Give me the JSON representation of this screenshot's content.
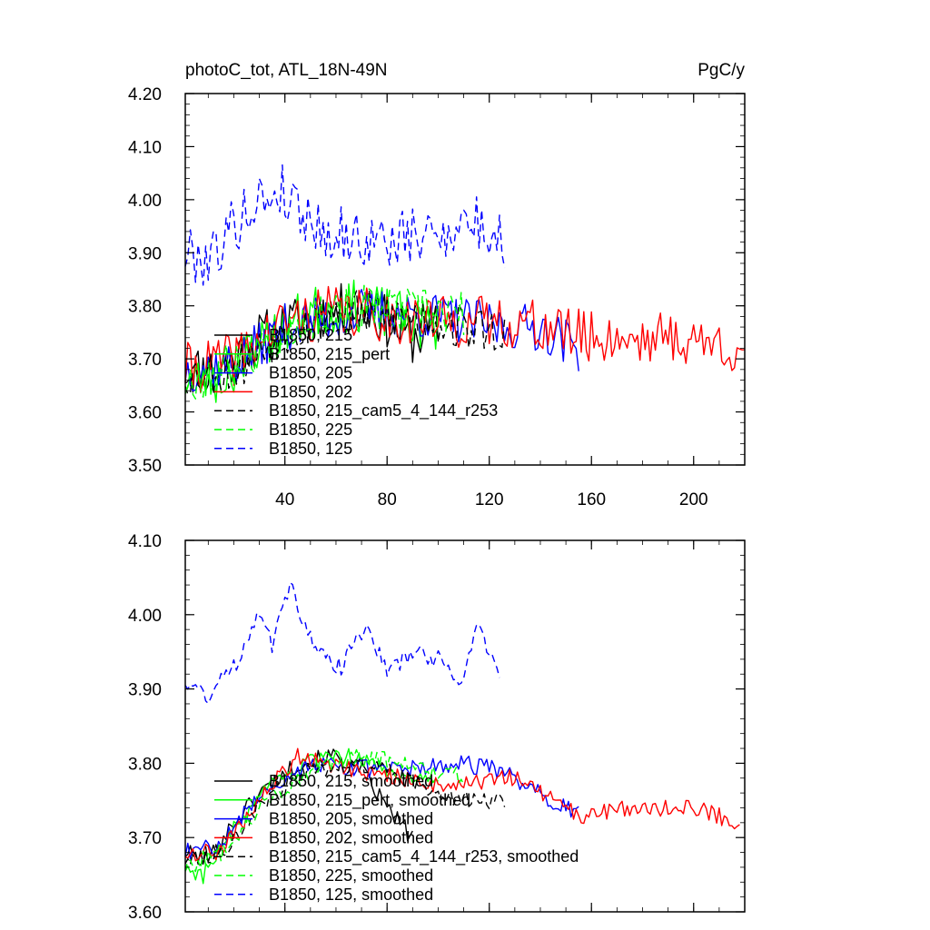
{
  "chart_data": [
    {
      "type": "line",
      "title": "photoC_tot, ATL_18N-49N",
      "units": "PgC/y",
      "xlim": [
        1,
        220
      ],
      "ylim": [
        3.5,
        4.2
      ],
      "xticks": [
        40,
        80,
        120,
        160,
        200
      ],
      "xtick_labels": [
        "40",
        "80",
        "120",
        "160",
        "200"
      ],
      "yticks": [
        3.5,
        3.6,
        3.7,
        3.8,
        3.9,
        4.0,
        4.1,
        4.2
      ],
      "ytick_labels": [
        "3.50",
        "3.60",
        "3.70",
        "3.80",
        "3.90",
        "4.00",
        "4.10",
        "4.20"
      ],
      "legend_position": "lower-left",
      "series": [
        {
          "name": "B1850, 215",
          "color": "#000000",
          "dash": "solid",
          "x_start": 1,
          "x_end": 100,
          "base": 3.76,
          "noise": 0.05,
          "seed": 11,
          "anchors": [
            [
              1,
              3.68
            ],
            [
              15,
              3.68
            ],
            [
              30,
              3.74
            ],
            [
              50,
              3.78
            ],
            [
              70,
              3.8
            ],
            [
              90,
              3.74
            ],
            [
              100,
              3.76
            ]
          ]
        },
        {
          "name": "B1850, 215_pert",
          "color": "#00ff00",
          "dash": "solid",
          "x_start": 1,
          "x_end": 100,
          "base": 3.76,
          "noise": 0.05,
          "seed": 23,
          "anchors": [
            [
              1,
              3.66
            ],
            [
              15,
              3.66
            ],
            [
              30,
              3.73
            ],
            [
              50,
              3.79
            ],
            [
              70,
              3.8
            ],
            [
              90,
              3.77
            ],
            [
              100,
              3.76
            ]
          ]
        },
        {
          "name": "B1850, 205",
          "color": "#0000ff",
          "dash": "solid",
          "x_start": 1,
          "x_end": 155,
          "base": 3.76,
          "noise": 0.045,
          "seed": 37,
          "anchors": [
            [
              1,
              3.68
            ],
            [
              20,
              3.69
            ],
            [
              40,
              3.76
            ],
            [
              70,
              3.79
            ],
            [
              100,
              3.78
            ],
            [
              125,
              3.76
            ],
            [
              140,
              3.76
            ],
            [
              155,
              3.72
            ]
          ]
        },
        {
          "name": "B1850, 202",
          "color": "#ff0000",
          "dash": "solid",
          "x_start": 1,
          "x_end": 220,
          "base": 3.74,
          "noise": 0.05,
          "seed": 41,
          "anchors": [
            [
              1,
              3.68
            ],
            [
              20,
              3.7
            ],
            [
              40,
              3.77
            ],
            [
              60,
              3.79
            ],
            [
              100,
              3.77
            ],
            [
              130,
              3.77
            ],
            [
              160,
              3.74
            ],
            [
              190,
              3.74
            ],
            [
              220,
              3.72
            ]
          ]
        },
        {
          "name": "B1850, 215_cam5_4_144_r253",
          "color": "#000000",
          "dash": "dashed",
          "x_start": 1,
          "x_end": 126,
          "base": 3.77,
          "noise": 0.045,
          "seed": 53,
          "anchors": [
            [
              1,
              3.67
            ],
            [
              20,
              3.68
            ],
            [
              40,
              3.75
            ],
            [
              60,
              3.79
            ],
            [
              90,
              3.78
            ],
            [
              110,
              3.76
            ],
            [
              126,
              3.75
            ]
          ]
        },
        {
          "name": "B1850, 225",
          "color": "#00ff00",
          "dash": "dashed",
          "x_start": 1,
          "x_end": 110,
          "base": 3.77,
          "noise": 0.045,
          "seed": 67,
          "anchors": [
            [
              1,
              3.66
            ],
            [
              20,
              3.69
            ],
            [
              40,
              3.76
            ],
            [
              60,
              3.8
            ],
            [
              80,
              3.79
            ],
            [
              100,
              3.79
            ],
            [
              110,
              3.78
            ]
          ]
        },
        {
          "name": "B1850, 125",
          "color": "#0000ff",
          "dash": "dashed",
          "x_start": 1,
          "x_end": 126,
          "base": 3.94,
          "noise": 0.055,
          "seed": 79,
          "anchors": [
            [
              1,
              3.9
            ],
            [
              10,
              3.89
            ],
            [
              25,
              3.98
            ],
            [
              38,
              4.02
            ],
            [
              55,
              3.94
            ],
            [
              75,
              3.92
            ],
            [
              95,
              3.93
            ],
            [
              112,
              3.96
            ],
            [
              126,
              3.92
            ]
          ]
        }
      ]
    },
    {
      "type": "line",
      "title": "",
      "units": "",
      "xlim": [
        1,
        220
      ],
      "ylim": [
        3.6,
        4.1
      ],
      "xticks": [
        40,
        80,
        120,
        160,
        200
      ],
      "xtick_labels": [
        "",
        "",
        "",
        "",
        ""
      ],
      "yticks": [
        3.6,
        3.7,
        3.8,
        3.9,
        4.0,
        4.1
      ],
      "ytick_labels": [
        "3.60",
        "3.70",
        "3.80",
        "3.90",
        "4.00",
        "4.10"
      ],
      "legend_position": "lower-left",
      "series": [
        {
          "name": "B1850, 215, smoothed",
          "color": "#000000",
          "dash": "solid",
          "x_start": 1,
          "x_end": 90,
          "base": 3.77,
          "noise": 0.012,
          "seed": 101,
          "anchors": [
            [
              1,
              3.68
            ],
            [
              10,
              3.67
            ],
            [
              20,
              3.72
            ],
            [
              30,
              3.76
            ],
            [
              45,
              3.8
            ],
            [
              60,
              3.81
            ],
            [
              70,
              3.79
            ],
            [
              80,
              3.74
            ],
            [
              90,
              3.7
            ]
          ]
        },
        {
          "name": "B1850, 215_pert, smoothed",
          "color": "#00ff00",
          "dash": "solid",
          "x_start": 1,
          "x_end": 100,
          "base": 3.77,
          "noise": 0.012,
          "seed": 103,
          "anchors": [
            [
              1,
              3.66
            ],
            [
              8,
              3.65
            ],
            [
              20,
              3.71
            ],
            [
              35,
              3.77
            ],
            [
              50,
              3.8
            ],
            [
              65,
              3.81
            ],
            [
              80,
              3.79
            ],
            [
              100,
              3.77
            ]
          ]
        },
        {
          "name": "B1850, 205, smoothed",
          "color": "#0000ff",
          "dash": "solid",
          "x_start": 1,
          "x_end": 155,
          "base": 3.77,
          "noise": 0.012,
          "seed": 107,
          "anchors": [
            [
              1,
              3.68
            ],
            [
              15,
              3.69
            ],
            [
              30,
              3.76
            ],
            [
              50,
              3.8
            ],
            [
              80,
              3.79
            ],
            [
              110,
              3.8
            ],
            [
              125,
              3.79
            ],
            [
              140,
              3.76
            ],
            [
              155,
              3.73
            ]
          ]
        },
        {
          "name": "B1850, 202, smoothed",
          "color": "#ff0000",
          "dash": "solid",
          "x_start": 1,
          "x_end": 218,
          "base": 3.75,
          "noise": 0.012,
          "seed": 109,
          "anchors": [
            [
              1,
              3.68
            ],
            [
              15,
              3.68
            ],
            [
              30,
              3.75
            ],
            [
              45,
              3.81
            ],
            [
              70,
              3.79
            ],
            [
              100,
              3.77
            ],
            [
              130,
              3.78
            ],
            [
              155,
              3.73
            ],
            [
              180,
              3.74
            ],
            [
              200,
              3.74
            ],
            [
              218,
              3.72
            ]
          ]
        },
        {
          "name": "B1850, 215_cam5_4_144_r253, smoothed",
          "color": "#000000",
          "dash": "dashed",
          "x_start": 1,
          "x_end": 126,
          "base": 3.77,
          "noise": 0.012,
          "seed": 113,
          "anchors": [
            [
              1,
              3.67
            ],
            [
              15,
              3.68
            ],
            [
              30,
              3.74
            ],
            [
              50,
              3.79
            ],
            [
              70,
              3.8
            ],
            [
              95,
              3.77
            ],
            [
              110,
              3.75
            ],
            [
              126,
              3.75
            ]
          ]
        },
        {
          "name": "B1850, 225, smoothed",
          "color": "#00ff00",
          "dash": "dashed",
          "x_start": 1,
          "x_end": 110,
          "base": 3.77,
          "noise": 0.012,
          "seed": 127,
          "anchors": [
            [
              1,
              3.66
            ],
            [
              15,
              3.68
            ],
            [
              30,
              3.74
            ],
            [
              50,
              3.79
            ],
            [
              70,
              3.81
            ],
            [
              90,
              3.8
            ],
            [
              110,
              3.78
            ]
          ]
        },
        {
          "name": "B1850, 125, smoothed",
          "color": "#0000ff",
          "dash": "dashed",
          "x_start": 1,
          "x_end": 124,
          "base": 3.94,
          "noise": 0.012,
          "seed": 131,
          "anchors": [
            [
              1,
              3.91
            ],
            [
              10,
              3.89
            ],
            [
              22,
              3.94
            ],
            [
              30,
              4.01
            ],
            [
              35,
              3.96
            ],
            [
              42,
              4.04
            ],
            [
              52,
              3.95
            ],
            [
              62,
              3.93
            ],
            [
              72,
              3.99
            ],
            [
              80,
              3.92
            ],
            [
              90,
              3.95
            ],
            [
              100,
              3.94
            ],
            [
              110,
              3.91
            ],
            [
              115,
              3.99
            ],
            [
              124,
              3.92
            ]
          ]
        }
      ]
    }
  ]
}
